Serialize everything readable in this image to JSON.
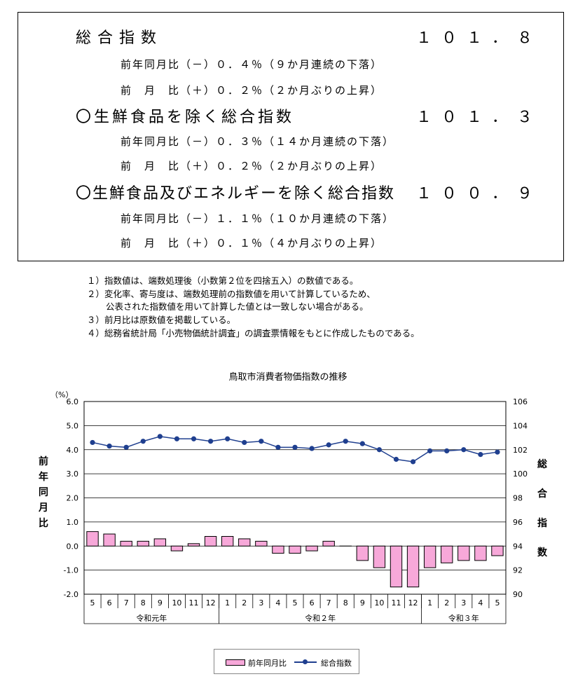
{
  "summary": {
    "item1": {
      "label": "総合指数",
      "value": "１０１．８",
      "yoy": "前年同月比（－）０．４％（９か月連続の下落）",
      "mom": "前　月　比（＋）０．２％（２か月ぶりの上昇）"
    },
    "item2": {
      "label": "〇生鮮食品を除く総合指数",
      "value": "１０１．３",
      "yoy": "前年同月比（－）０．３％（１４か月連続の下落）",
      "mom": "前　月　比（＋）０．２％（２か月ぶりの上昇）"
    },
    "item3": {
      "label": "〇生鮮食品及びエネルギーを除く総合指数",
      "value": "１００．９",
      "yoy": "前年同月比（－）１．１％（１０か月連続の下落）",
      "mom": "前　月　比（＋）０．１％（４か月ぶりの上昇）"
    }
  },
  "notes": [
    "１）指数値は、端数処理後（小数第２位を四捨五入）の数値である。",
    "２）変化率、寄与度は、端数処理前の指数値を用いて計算しているため、",
    "公表された指数値を用いて計算した値とは一致しない場合がある。",
    "３）前月比は原数値を掲載している。",
    "４）総務省統計局「小売物価統計調査」の調査票情報をもとに作成したものである。"
  ],
  "chart_data": {
    "type": "bar+line",
    "title": "鳥取市消費者物価指数の推移",
    "categories": [
      "5",
      "6",
      "7",
      "8",
      "9",
      "10",
      "11",
      "12",
      "1",
      "2",
      "3",
      "4",
      "5",
      "6",
      "7",
      "8",
      "9",
      "10",
      "11",
      "12",
      "1",
      "2",
      "3",
      "4",
      "5"
    ],
    "groups": [
      {
        "label": "令和元年",
        "count": 8
      },
      {
        "label": "令和２年",
        "count": 12
      },
      {
        "label": "令和３年",
        "count": 5
      }
    ],
    "series": [
      {
        "name": "前年同月比",
        "type": "bar",
        "axis": "left",
        "color": "#f7a8d9",
        "values": [
          0.6,
          0.5,
          0.2,
          0.2,
          0.3,
          -0.2,
          0.1,
          0.4,
          0.4,
          0.3,
          0.2,
          -0.3,
          -0.3,
          -0.2,
          0.2,
          0.0,
          -0.6,
          -0.9,
          -1.7,
          -1.7,
          -0.9,
          -0.7,
          -0.6,
          -0.6,
          -0.4
        ]
      },
      {
        "name": "総合指数",
        "type": "line",
        "axis": "right",
        "color": "#1f3f8f",
        "values": [
          102.6,
          102.3,
          102.2,
          102.7,
          103.1,
          102.9,
          102.9,
          102.7,
          102.9,
          102.6,
          102.7,
          102.2,
          102.2,
          102.1,
          102.4,
          102.7,
          102.5,
          102.0,
          101.2,
          101.0,
          101.9,
          101.9,
          102.0,
          101.6,
          101.8
        ]
      }
    ],
    "left_axis": {
      "unit": "（%）",
      "label": "前年同月比",
      "ylim": [
        -2.0,
        6.0
      ],
      "ticks": [
        "6.0",
        "5.0",
        "4.0",
        "3.0",
        "2.0",
        "1.0",
        "0.0",
        "-1.0",
        "-2.0"
      ]
    },
    "right_axis": {
      "label": "総合指数",
      "ylim": [
        90,
        106
      ],
      "ticks": [
        "106",
        "104",
        "102",
        "100",
        "98",
        "96",
        "94",
        "92",
        "90"
      ]
    },
    "legend": {
      "placement": "bottom-center",
      "items": [
        "前年同月比",
        "総合指数"
      ]
    }
  }
}
